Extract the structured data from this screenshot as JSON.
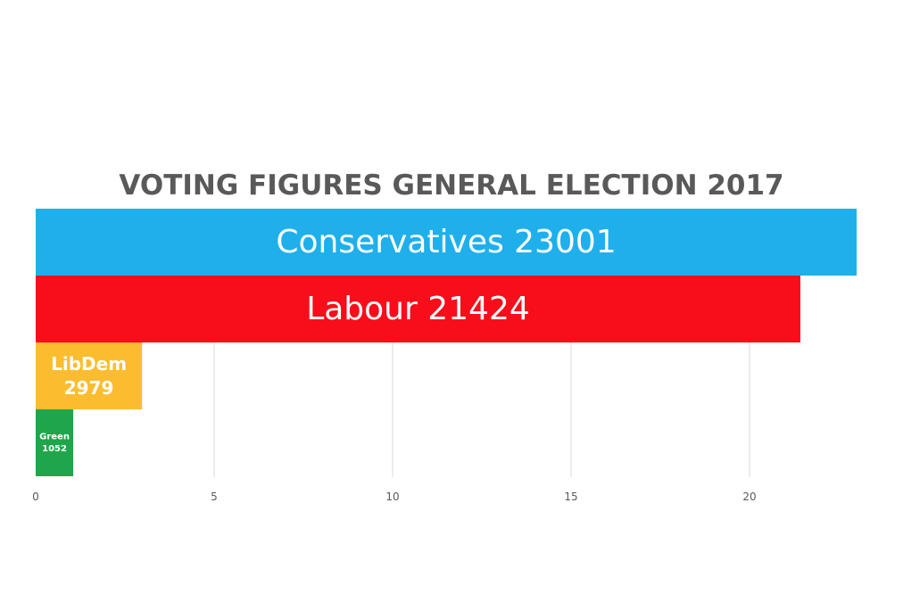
{
  "chart_data": {
    "type": "bar",
    "orientation": "horizontal",
    "title": "VOTING FIGURES  GENERAL ELECTION 2017",
    "categories": [
      "Conservatives",
      "Labour",
      "LibDem",
      "Green"
    ],
    "values": [
      23001,
      21424,
      2979,
      1052
    ],
    "bar_labels": [
      [
        "Conservatives 23001"
      ],
      [
        "Labour 21424"
      ],
      [
        "LibDem",
        "2979"
      ],
      [
        "Green",
        "1052"
      ]
    ],
    "colors": [
      "#1fb0eb",
      "#f80e1b",
      "#fbbd2f",
      "#1fa64a"
    ],
    "label_color": "#ffffff",
    "x_ticks": [
      "0",
      "5",
      "10",
      "15",
      "20"
    ],
    "xlim": [
      0,
      23
    ],
    "xlabel": "",
    "ylabel": "",
    "grid": true,
    "legend": "none"
  }
}
